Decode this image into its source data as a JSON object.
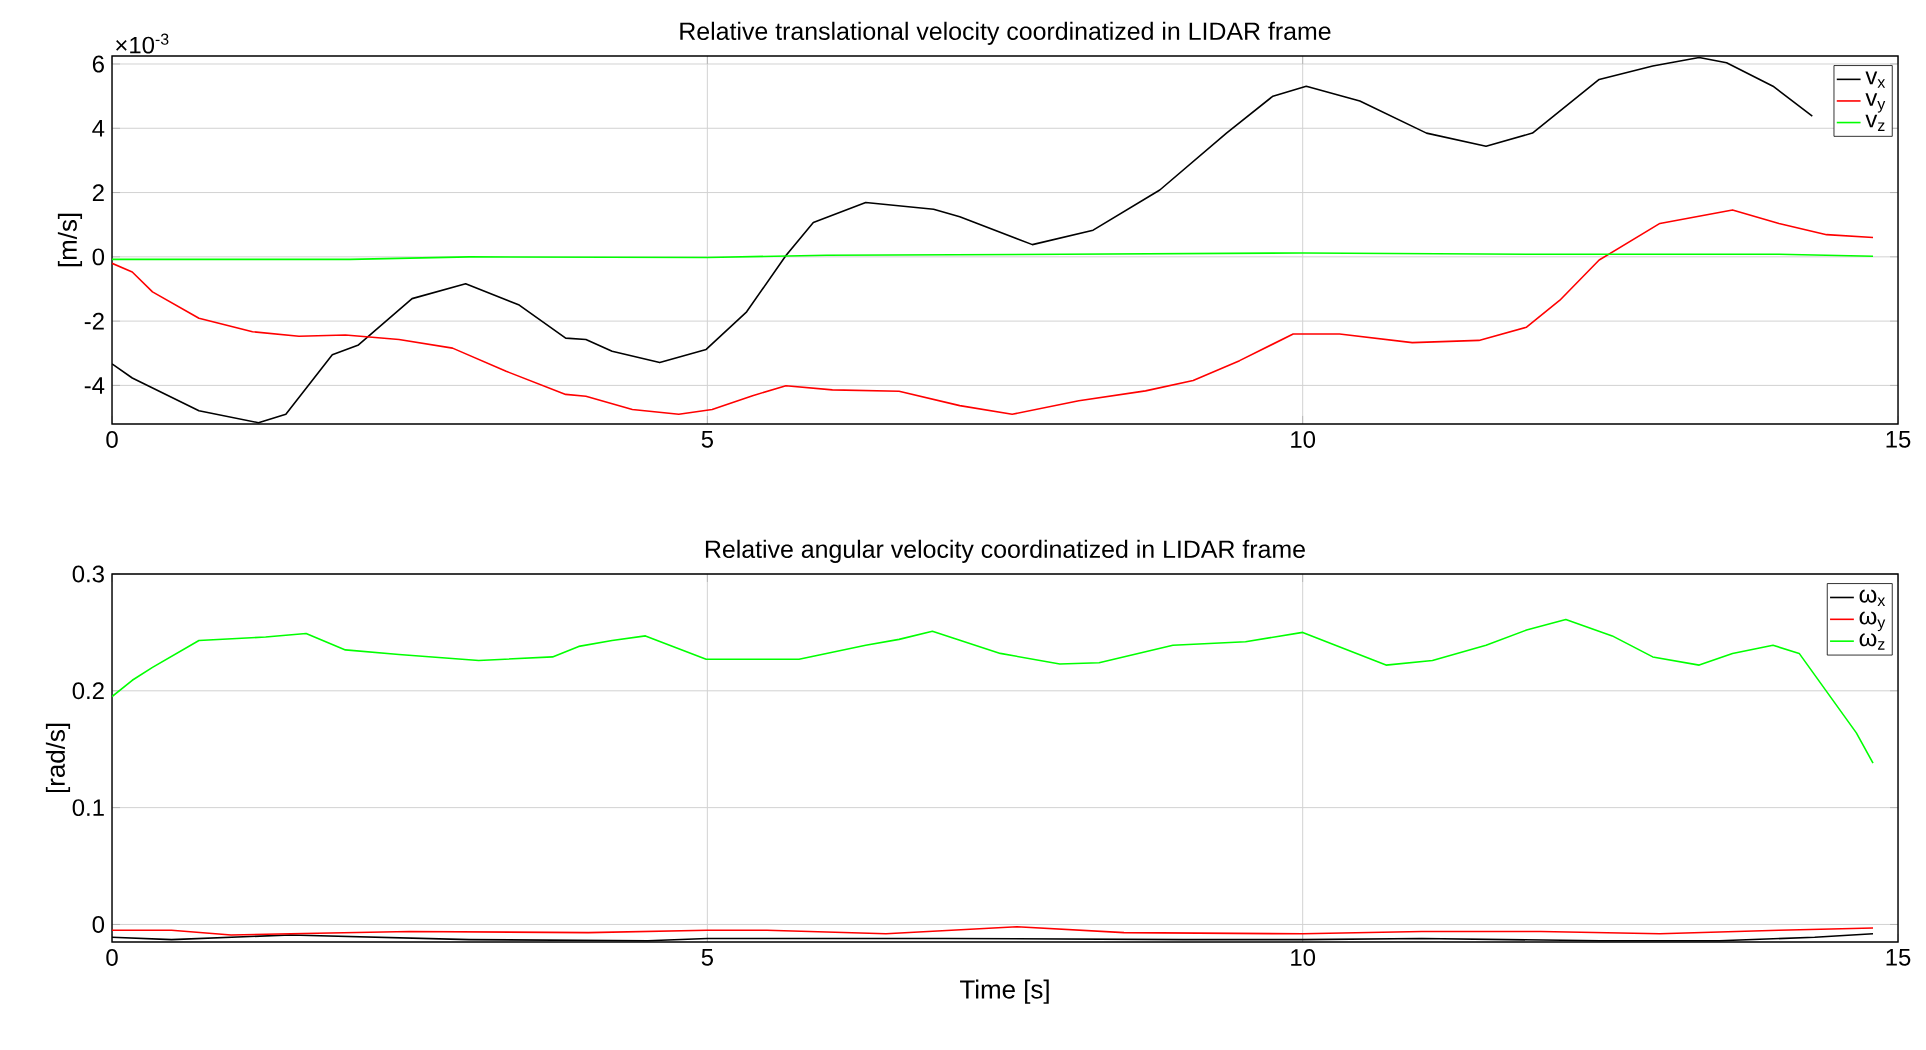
{
  "chart_data": [
    {
      "type": "line",
      "title": "Relative translational velocity coordinatized in LIDAR frame",
      "ylabel": "[m/s]",
      "annotations": [
        "×10$^{-3}$"
      ],
      "xlim": [
        0,
        15
      ],
      "xticks": [
        0,
        5,
        10,
        15
      ],
      "ylim": [
        -5.2,
        6.25
      ],
      "yticks": [
        -4,
        -2,
        0,
        2,
        4,
        6
      ],
      "grid": true,
      "legend": "top right",
      "marker": "none",
      "line_style": "solid",
      "series": [
        {
          "name": "v$_{x}$",
          "color": "#000000",
          "x": [
            0,
            0.17,
            0.73,
            1.23,
            1.46,
            1.85,
            2.07,
            2.52,
            2.97,
            3.42,
            3.81,
            3.98,
            4.2,
            4.6,
            4.99,
            5.33,
            5.66,
            5.89,
            6.33,
            6.9,
            7.12,
            7.73,
            8.24,
            8.8,
            9.36,
            9.75,
            10.03,
            10.48,
            11.04,
            11.54,
            11.93,
            12.49,
            12.94,
            13.33,
            13.56,
            13.95,
            14.28
          ],
          "values": [
            -3.33,
            -3.77,
            -4.79,
            -5.16,
            -4.9,
            -3.05,
            -2.74,
            -1.3,
            -0.84,
            -1.5,
            -2.53,
            -2.57,
            -2.94,
            -3.29,
            -2.88,
            -1.71,
            0.04,
            1.07,
            1.69,
            1.48,
            1.25,
            0.38,
            0.83,
            2.08,
            3.85,
            5.0,
            5.31,
            4.85,
            3.85,
            3.44,
            3.85,
            5.52,
            5.94,
            6.2,
            6.04,
            5.31,
            4.38
          ]
        },
        {
          "name": "v$_{y}$",
          "color": "#ff0000",
          "x": [
            0,
            0.17,
            0.34,
            0.73,
            1.18,
            1.57,
            1.96,
            2.41,
            2.86,
            3.31,
            3.81,
            3.98,
            4.37,
            4.76,
            5.04,
            5.38,
            5.66,
            6.05,
            6.61,
            7.12,
            7.56,
            8.12,
            8.68,
            9.08,
            9.47,
            9.92,
            10.31,
            10.92,
            11.48,
            11.88,
            12.16,
            12.49,
            13.0,
            13.61,
            14.0,
            14.4,
            14.79
          ],
          "values": [
            -0.2,
            -0.47,
            -1.09,
            -1.91,
            -2.33,
            -2.47,
            -2.43,
            -2.57,
            -2.84,
            -3.56,
            -4.28,
            -4.34,
            -4.75,
            -4.9,
            -4.75,
            -4.32,
            -4.01,
            -4.14,
            -4.18,
            -4.63,
            -4.9,
            -4.48,
            -4.17,
            -3.85,
            -3.23,
            -2.4,
            -2.4,
            -2.67,
            -2.6,
            -2.19,
            -1.35,
            -0.1,
            1.04,
            1.46,
            1.04,
            0.69,
            0.6
          ]
        },
        {
          "name": "v$_{z}$",
          "color": "#00ff00",
          "x": [
            0,
            2,
            3,
            5,
            6,
            8,
            10,
            12,
            14,
            14.79
          ],
          "values": [
            -0.08,
            -0.08,
            0,
            -0.02,
            0.05,
            0.08,
            0.12,
            0.08,
            0.08,
            0.02
          ]
        }
      ]
    },
    {
      "type": "line",
      "title": "Relative angular velocity coordinatized in LIDAR frame",
      "xlabel": "Time [s]",
      "ylabel": "[rad/s]",
      "xlim": [
        0,
        15
      ],
      "xticks": [
        0,
        5,
        10,
        15
      ],
      "ylim": [
        -0.015,
        0.3
      ],
      "yticks": [
        0,
        0.1,
        0.2,
        0.3
      ],
      "grid": true,
      "legend": "top right",
      "marker": "none",
      "line_style": "solid",
      "series": [
        {
          "name": "ω$_{x}$",
          "color": "#000000",
          "x": [
            0,
            0.5,
            1.5,
            3,
            4.5,
            5,
            7,
            9,
            10,
            11,
            12.5,
            13.5,
            14.3,
            14.79
          ],
          "values": [
            -0.011,
            -0.013,
            -0.009,
            -0.013,
            -0.014,
            -0.012,
            -0.012,
            -0.013,
            -0.013,
            -0.012,
            -0.014,
            -0.014,
            -0.011,
            -0.008
          ]
        },
        {
          "name": "ω$_{y}$",
          "color": "#ff0000",
          "x": [
            0,
            0.5,
            1,
            1.5,
            2.5,
            4,
            5,
            5.5,
            6.5,
            7.6,
            8.5,
            10,
            11,
            12,
            13,
            14,
            14.79
          ],
          "values": [
            -0.005,
            -0.005,
            -0.009,
            -0.008,
            -0.006,
            -0.007,
            -0.005,
            -0.005,
            -0.008,
            -0.002,
            -0.007,
            -0.008,
            -0.006,
            -0.006,
            -0.008,
            -0.005,
            -0.003
          ]
        },
        {
          "name": "ω$_{z}$",
          "color": "#00ff00",
          "x": [
            0,
            0.17,
            0.34,
            0.73,
            1.29,
            1.63,
            1.96,
            2.41,
            3.08,
            3.7,
            3.92,
            4.2,
            4.48,
            4.99,
            5.77,
            6.33,
            6.61,
            6.89,
            7.46,
            7.96,
            8.29,
            8.91,
            9.52,
            10.0,
            10.7,
            11.09,
            11.54,
            11.88,
            12.21,
            12.6,
            12.94,
            13.33,
            13.61,
            13.95,
            14.17,
            14.65,
            14.79
          ],
          "values": [
            0.195,
            0.209,
            0.22,
            0.243,
            0.246,
            0.249,
            0.235,
            0.231,
            0.226,
            0.229,
            0.238,
            0.243,
            0.247,
            0.227,
            0.227,
            0.239,
            0.244,
            0.251,
            0.232,
            0.223,
            0.224,
            0.239,
            0.242,
            0.25,
            0.222,
            0.226,
            0.239,
            0.252,
            0.261,
            0.247,
            0.229,
            0.222,
            0.232,
            0.239,
            0.232,
            0.164,
            0.138
          ]
        }
      ]
    }
  ]
}
